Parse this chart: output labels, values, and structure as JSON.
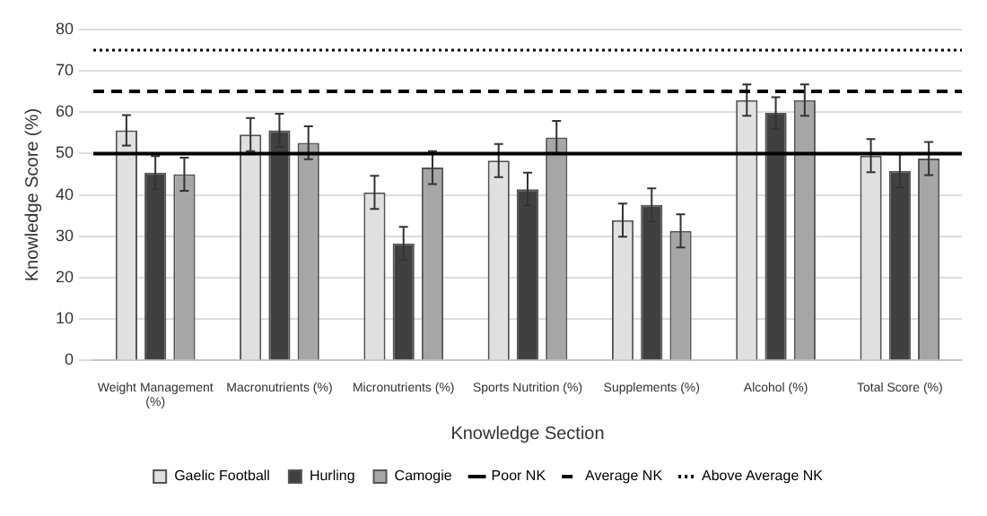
{
  "chart_data": {
    "type": "bar",
    "xlabel": "Knowledge Section",
    "ylabel": "Knowledge Score (%)",
    "categories": [
      "Weight Management (%)",
      "Macronutrients (%)",
      "Micronutrients (%)",
      "Sports Nutrition (%)",
      "Supplements (%)",
      "Alcohol (%)",
      "Total Score (%)"
    ],
    "series": [
      {
        "name": "Gaelic Football",
        "color": "#e0e0e0",
        "values": [
          55.6,
          54.6,
          40.6,
          48.3,
          33.9,
          62.9,
          49.5
        ],
        "errors": [
          3.7,
          4,
          4,
          4,
          4,
          3.8,
          4
        ]
      },
      {
        "name": "Hurling",
        "color": "#404040",
        "values": [
          45.4,
          55.6,
          28.3,
          41.4,
          37.6,
          59.8,
          45.8
        ],
        "errors": [
          4,
          4,
          4,
          4,
          4,
          3.8,
          4
        ]
      },
      {
        "name": "Camogie",
        "color": "#a6a6a6",
        "values": [
          45,
          52.6,
          46.6,
          53.9,
          31.3,
          62.9,
          48.8
        ],
        "errors": [
          4,
          4,
          4,
          4,
          4,
          3.8,
          4
        ]
      }
    ],
    "ref_lines": [
      {
        "axis": "y",
        "value": 50,
        "label": "Poor NK",
        "color": "#000000",
        "line_style": "solid"
      },
      {
        "axis": "y",
        "value": 65,
        "label": "Average NK",
        "color": "#000000",
        "line_style": "dashed"
      },
      {
        "axis": "y",
        "value": 75,
        "label": "Above Average NK",
        "color": "#000000",
        "line_style": "dotted"
      }
    ],
    "ylim": [
      0,
      80
    ],
    "yticks": [
      0,
      10,
      20,
      30,
      40,
      50,
      60,
      70,
      80
    ],
    "grid": "y",
    "legend": "bottom"
  }
}
